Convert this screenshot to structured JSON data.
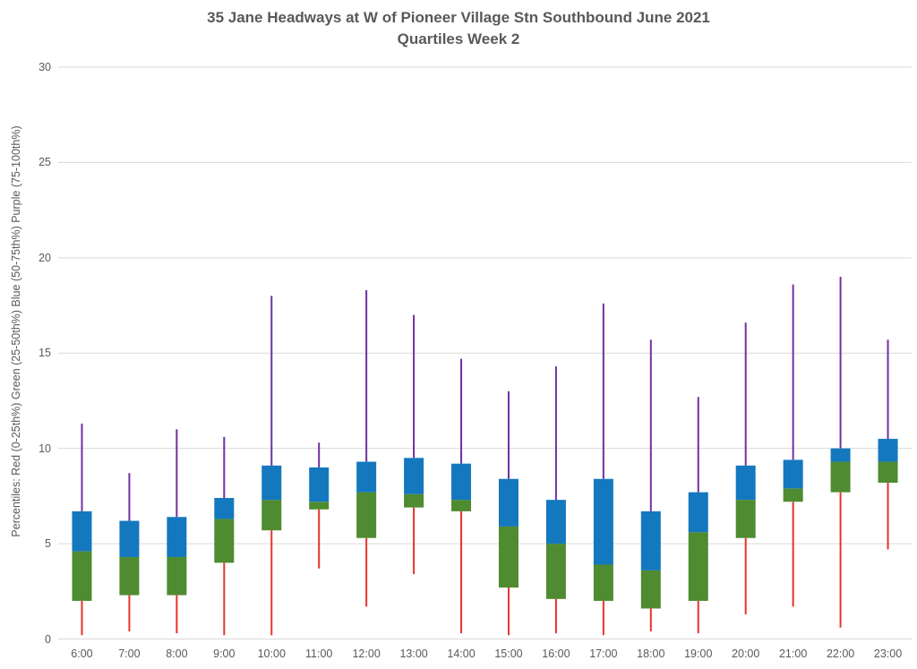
{
  "title": {
    "line1": "35 Jane Headways at W of Pioneer Village Stn Southbound June 2021",
    "line2": "Quartiles Week 2"
  },
  "y_axis_label": "Percentiles:  Red (0-25th%)  Green (25-50th%)  Blue (50-75th%)  Purple (75-100th%)",
  "chart_data": {
    "type": "bar",
    "subtype": "stacked-quartile-box-whisker",
    "title": "35 Jane Headways at W of Pioneer Village Stn Southbound June 2021 — Quartiles Week 2",
    "xlabel": "",
    "ylabel": "Percentiles:  Red (0-25th%)  Green (25-50th%)  Blue (50-75th%)  Purple (75-100th%)",
    "ylim": [
      0,
      30
    ],
    "yticks": [
      0,
      5,
      10,
      15,
      20,
      25,
      30
    ],
    "grid": true,
    "legend_position": "none",
    "categories": [
      "6:00",
      "7:00",
      "8:00",
      "9:00",
      "10:00",
      "11:00",
      "12:00",
      "13:00",
      "14:00",
      "15:00",
      "16:00",
      "17:00",
      "18:00",
      "19:00",
      "20:00",
      "21:00",
      "22:00",
      "23:00"
    ],
    "points": [
      {
        "hour": "6:00",
        "min": 0.2,
        "p25": 2.0,
        "p50": 4.6,
        "p75": 6.7,
        "max": 11.3
      },
      {
        "hour": "7:00",
        "min": 0.4,
        "p25": 2.3,
        "p50": 4.3,
        "p75": 6.2,
        "max": 8.7
      },
      {
        "hour": "8:00",
        "min": 0.3,
        "p25": 2.3,
        "p50": 4.3,
        "p75": 6.4,
        "max": 11.0
      },
      {
        "hour": "9:00",
        "min": 0.2,
        "p25": 4.0,
        "p50": 6.3,
        "p75": 7.4,
        "max": 10.6
      },
      {
        "hour": "10:00",
        "min": 0.2,
        "p25": 5.7,
        "p50": 7.3,
        "p75": 9.1,
        "max": 18.0
      },
      {
        "hour": "11:00",
        "min": 3.7,
        "p25": 6.8,
        "p50": 7.2,
        "p75": 9.0,
        "max": 10.3
      },
      {
        "hour": "12:00",
        "min": 1.7,
        "p25": 5.3,
        "p50": 7.7,
        "p75": 9.3,
        "max": 18.3
      },
      {
        "hour": "13:00",
        "min": 3.4,
        "p25": 6.9,
        "p50": 7.6,
        "p75": 9.5,
        "max": 17.0
      },
      {
        "hour": "14:00",
        "min": 0.3,
        "p25": 6.7,
        "p50": 7.3,
        "p75": 9.2,
        "max": 14.7
      },
      {
        "hour": "15:00",
        "min": 0.2,
        "p25": 2.7,
        "p50": 5.9,
        "p75": 8.4,
        "max": 13.0
      },
      {
        "hour": "16:00",
        "min": 0.3,
        "p25": 2.1,
        "p50": 5.0,
        "p75": 7.3,
        "max": 14.3
      },
      {
        "hour": "17:00",
        "min": 0.2,
        "p25": 2.0,
        "p50": 3.9,
        "p75": 8.4,
        "max": 17.6
      },
      {
        "hour": "18:00",
        "min": 0.4,
        "p25": 1.6,
        "p50": 3.6,
        "p75": 6.7,
        "max": 15.7
      },
      {
        "hour": "19:00",
        "min": 0.3,
        "p25": 2.0,
        "p50": 5.6,
        "p75": 7.7,
        "max": 12.7
      },
      {
        "hour": "20:00",
        "min": 1.3,
        "p25": 5.3,
        "p50": 7.3,
        "p75": 9.1,
        "max": 16.6
      },
      {
        "hour": "21:00",
        "min": 1.7,
        "p25": 7.2,
        "p50": 7.9,
        "p75": 9.4,
        "max": 18.6
      },
      {
        "hour": "22:00",
        "min": 0.6,
        "p25": 7.7,
        "p50": 9.3,
        "p75": 10.0,
        "max": 19.0
      },
      {
        "hour": "23:00",
        "min": 4.7,
        "p25": 8.2,
        "p50": 9.3,
        "p75": 10.5,
        "max": 15.7
      }
    ],
    "colors": {
      "red_whisker": "#e9332a",
      "green_box": "#4f8b30",
      "blue_box": "#1478be",
      "purple_whisker": "#7030a0",
      "gridline": "#d9d9d9",
      "axis_text": "#595959"
    }
  }
}
